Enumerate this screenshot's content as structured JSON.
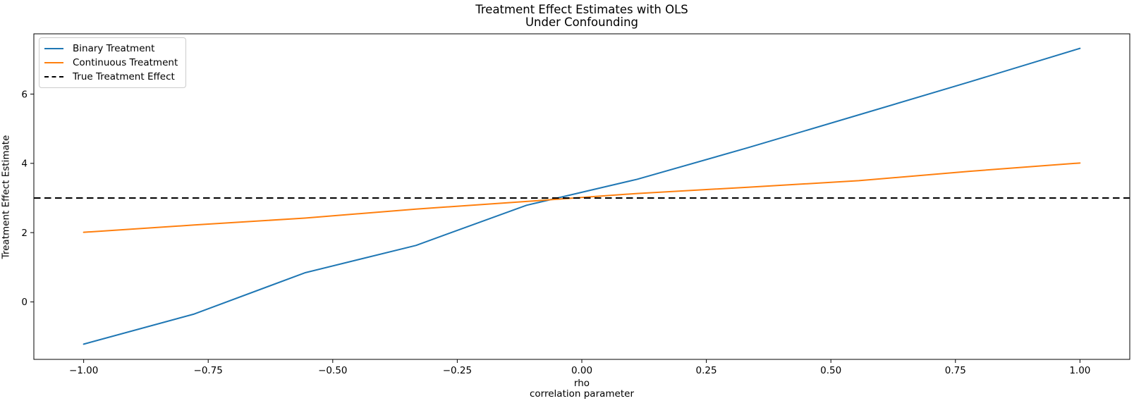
{
  "chart_data": {
    "type": "line",
    "title_lines": [
      "Treatment Effect Estimates with OLS",
      "Under Confounding"
    ],
    "xlabel_lines": [
      "rho",
      "correlation parameter"
    ],
    "ylabel": "Treatment Effect Estimate",
    "xlim": [
      -1.1,
      1.1
    ],
    "ylim": [
      -1.66,
      7.74
    ],
    "x_ticks": [
      -1.0,
      -0.75,
      -0.5,
      -0.25,
      0.0,
      0.25,
      0.5,
      0.75,
      1.0
    ],
    "x_tick_labels": [
      "−1.00",
      "−0.75",
      "−0.50",
      "−0.25",
      "0.00",
      "0.25",
      "0.50",
      "0.75",
      "1.00"
    ],
    "y_ticks": [
      0,
      2,
      4,
      6
    ],
    "y_tick_labels": [
      "0",
      "2",
      "4",
      "6"
    ],
    "grid": false,
    "legend_position": "upper left",
    "x": [
      -1.0,
      -0.778,
      -0.556,
      -0.333,
      -0.111,
      0.111,
      0.333,
      0.556,
      0.778,
      1.0
    ],
    "series": [
      {
        "name": "Binary Treatment",
        "color": "#1f77b4",
        "line_style": "solid",
        "values": [
          -1.22,
          -0.35,
          0.84,
          1.63,
          2.79,
          3.54,
          4.45,
          5.4,
          6.35,
          7.32
        ]
      },
      {
        "name": "Continuous Treatment",
        "color": "#ff7f0e",
        "line_style": "solid",
        "values": [
          2.01,
          2.22,
          2.42,
          2.68,
          2.9,
          3.13,
          3.31,
          3.5,
          3.77,
          4.01
        ]
      },
      {
        "name": "True Treatment Effect",
        "color": "#000000",
        "line_style": "dashed",
        "hline_value": 3.0
      }
    ]
  }
}
